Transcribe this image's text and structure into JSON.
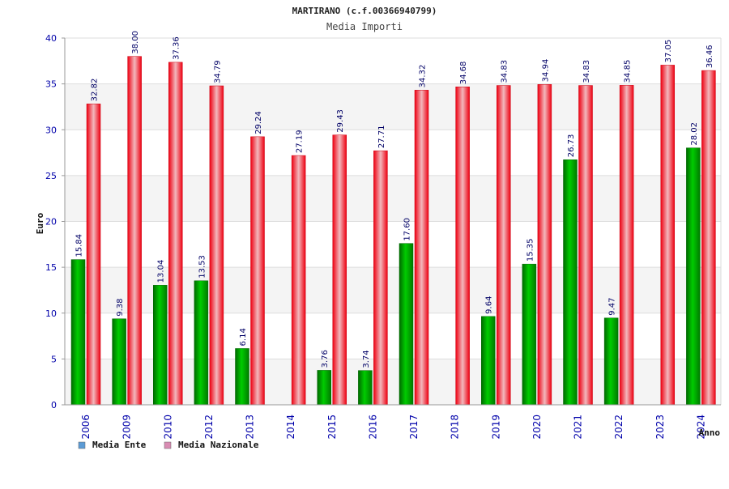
{
  "chart_data": {
    "type": "bar",
    "title": "MARTIRANO (c.f.00366940799)",
    "subtitle": "Media Importi",
    "xlabel": "Anno",
    "ylabel": "Euro",
    "ylim": [
      0,
      40
    ],
    "yticks": [
      0,
      5,
      10,
      15,
      20,
      25,
      30,
      35,
      40
    ],
    "grid": true,
    "legend_position": "bottom-left",
    "categories": [
      "2006",
      "2009",
      "2010",
      "2012",
      "2013",
      "2014",
      "2015",
      "2016",
      "2017",
      "2018",
      "2019",
      "2020",
      "2021",
      "2022",
      "2023",
      "2024"
    ],
    "series": [
      {
        "name": "Media Ente",
        "color": "#00aa00",
        "legend_color": "#5b9bd5",
        "values": [
          15.84,
          9.38,
          13.04,
          13.53,
          6.14,
          null,
          3.76,
          3.74,
          17.6,
          null,
          9.64,
          15.35,
          26.73,
          9.47,
          null,
          28.02
        ],
        "labels": [
          "15.84",
          "9.38",
          "13.04",
          "13.53",
          "6.14",
          "",
          "3.76",
          "3.74",
          "17.60",
          "",
          "9.64",
          "15.35",
          "26.73",
          "9.47",
          "",
          "28.02"
        ]
      },
      {
        "name": "Media Nazionale",
        "color": "#ee1122",
        "legend_color": "#d98cb3",
        "values": [
          32.82,
          38.0,
          37.36,
          34.79,
          29.24,
          27.19,
          29.43,
          27.71,
          34.32,
          34.68,
          34.83,
          34.94,
          34.83,
          34.85,
          37.05,
          36.46
        ],
        "labels": [
          "32.82",
          "38.00",
          "37.36",
          "34.79",
          "29.24",
          "27.19",
          "29.43",
          "27.71",
          "34.32",
          "34.68",
          "34.83",
          "34.94",
          "34.83",
          "34.85",
          "37.05",
          "36.46"
        ]
      }
    ]
  }
}
